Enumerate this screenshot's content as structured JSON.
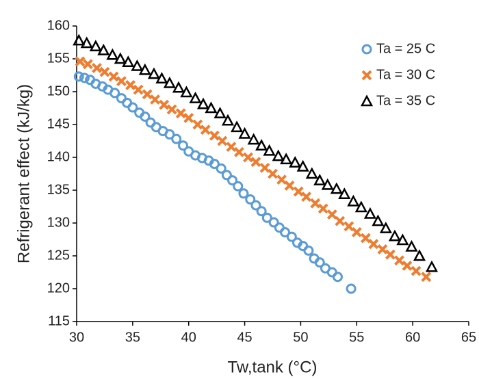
{
  "chart_data": {
    "type": "scatter",
    "xlabel": "Tw,tank (°C)",
    "ylabel": "Refrigerant effect (kJ/kg)",
    "xlim": [
      30,
      65
    ],
    "xticks": [
      30,
      35,
      40,
      45,
      50,
      55,
      60,
      65
    ],
    "ylim": [
      115,
      160
    ],
    "yticks": [
      115,
      120,
      125,
      130,
      135,
      140,
      145,
      150,
      155,
      160
    ],
    "legend": "top-right",
    "grid": false,
    "series": [
      {
        "name": "Ta = 25 C",
        "color": "#5b9bd5",
        "marker": "circle",
        "x": [
          30.2,
          30.7,
          31.2,
          31.7,
          32.3,
          32.8,
          33.4,
          34.0,
          34.5,
          35.0,
          35.6,
          36.1,
          36.6,
          37.1,
          37.7,
          38.3,
          38.9,
          39.5,
          40.0,
          40.6,
          41.2,
          41.8,
          42.3,
          42.9,
          43.4,
          43.9,
          44.4,
          44.9,
          45.5,
          46.0,
          46.5,
          47.0,
          47.6,
          48.1,
          48.6,
          49.2,
          49.7,
          50.2,
          50.7,
          51.2,
          51.7,
          52.2,
          52.8,
          53.3,
          54.5
        ],
        "values": [
          152.3,
          152.1,
          151.8,
          151.2,
          150.8,
          150.3,
          149.8,
          149.0,
          148.3,
          147.6,
          146.8,
          146.2,
          145.3,
          144.6,
          144.0,
          143.5,
          142.8,
          141.8,
          140.9,
          140.3,
          139.9,
          139.5,
          139.0,
          138.3,
          137.3,
          136.5,
          135.6,
          134.5,
          133.6,
          132.7,
          131.8,
          130.8,
          130.1,
          129.3,
          128.6,
          127.9,
          127.0,
          126.5,
          125.8,
          124.6,
          124.0,
          123.1,
          122.5,
          121.8,
          120.0
        ]
      },
      {
        "name": "Ta = 30 C",
        "color": "#ed7d31",
        "marker": "x",
        "x": [
          30.3,
          31.0,
          31.8,
          32.5,
          33.3,
          34.0,
          34.8,
          35.5,
          36.3,
          37.0,
          37.8,
          38.5,
          39.3,
          40.0,
          40.8,
          41.5,
          42.3,
          43.0,
          43.8,
          44.5,
          45.3,
          46.0,
          46.8,
          47.5,
          48.3,
          49.0,
          49.8,
          50.5,
          51.3,
          52.0,
          52.8,
          53.5,
          54.3,
          55.0,
          55.8,
          56.5,
          57.3,
          58.0,
          58.8,
          59.5,
          60.3,
          61.2
        ],
        "values": [
          154.6,
          154.2,
          153.6,
          153.0,
          152.3,
          151.6,
          151.0,
          150.3,
          149.6,
          148.8,
          148.0,
          147.3,
          146.7,
          146.0,
          145.0,
          144.2,
          143.3,
          142.5,
          141.6,
          140.8,
          140.0,
          139.3,
          138.4,
          137.5,
          136.6,
          135.7,
          134.8,
          134.0,
          133.0,
          132.2,
          131.3,
          130.3,
          129.5,
          128.6,
          127.7,
          126.8,
          126.0,
          125.2,
          124.3,
          123.5,
          122.7,
          121.8
        ]
      },
      {
        "name": "Ta = 35 C",
        "color": "#000000",
        "marker": "triangle",
        "x": [
          30.2,
          30.9,
          31.7,
          32.4,
          33.2,
          33.9,
          34.6,
          35.4,
          36.1,
          36.9,
          37.6,
          38.3,
          39.1,
          39.8,
          40.6,
          41.3,
          42.0,
          42.8,
          43.5,
          44.3,
          45.0,
          45.8,
          46.5,
          47.2,
          48.0,
          48.7,
          49.5,
          50.2,
          51.0,
          51.7,
          52.4,
          53.2,
          53.9,
          54.7,
          55.4,
          56.2,
          56.9,
          57.6,
          58.4,
          59.1,
          59.9,
          60.6,
          61.7
        ],
        "values": [
          157.8,
          157.4,
          156.9,
          156.3,
          155.6,
          155.0,
          154.5,
          153.9,
          153.3,
          152.7,
          152.0,
          151.3,
          150.6,
          149.9,
          149.0,
          148.1,
          147.5,
          146.7,
          145.6,
          144.6,
          143.6,
          142.7,
          141.8,
          141.0,
          140.2,
          139.7,
          139.2,
          138.6,
          137.5,
          136.5,
          135.8,
          135.2,
          134.4,
          133.3,
          132.4,
          131.4,
          130.3,
          129.2,
          128.0,
          127.4,
          126.4,
          125.0,
          123.3
        ]
      }
    ]
  }
}
